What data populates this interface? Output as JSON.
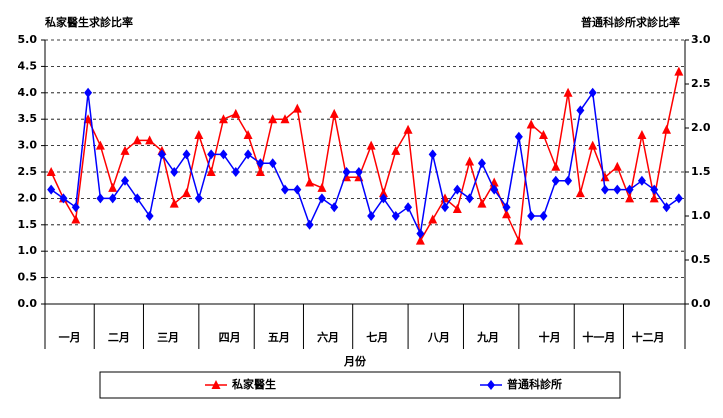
{
  "chart_data": {
    "type": "line",
    "title": "私家醫生求診比率",
    "y2_title": "普通科診所求診比率",
    "x_label": "月份",
    "categories": [
      null,
      "一月",
      null,
      null,
      null,
      "二月",
      null,
      null,
      null,
      "三月",
      null,
      null,
      null,
      null,
      "四月",
      null,
      null,
      null,
      "五月",
      null,
      null,
      null,
      "六月",
      null,
      null,
      null,
      "七月",
      null,
      null,
      null,
      null,
      "八月",
      null,
      null,
      null,
      "九月",
      null,
      null,
      null,
      null,
      "十月",
      null,
      null,
      null,
      "十一月",
      null,
      null,
      null,
      "十二月",
      null,
      null,
      null
    ],
    "series": [
      {
        "name": "私家醫生",
        "color": "#ff0000",
        "marker": "triangle",
        "values": [
          2.5,
          2.0,
          1.6,
          3.5,
          3.0,
          2.2,
          2.9,
          3.1,
          3.1,
          2.9,
          1.9,
          2.1,
          3.2,
          2.5,
          3.5,
          3.6,
          3.2,
          2.5,
          3.5,
          3.5,
          3.7,
          2.3,
          2.2,
          3.6,
          2.4,
          2.4,
          3.0,
          2.1,
          2.9,
          3.3,
          1.2,
          1.6,
          2.0,
          1.8,
          2.7,
          1.9,
          2.3,
          1.7,
          1.2,
          3.4,
          3.2,
          2.6,
          4.0,
          2.1,
          3.0,
          2.4,
          2.6,
          2.0,
          3.2,
          2.0,
          3.3,
          4.4
        ]
      },
      {
        "name": "普通科診所",
        "color": "#0000ff",
        "marker": "diamond",
        "axis": "y2",
        "values": [
          1.3,
          1.2,
          1.1,
          2.4,
          1.2,
          1.2,
          1.4,
          1.2,
          1.0,
          1.7,
          1.5,
          1.7,
          1.2,
          1.7,
          1.7,
          1.5,
          1.7,
          1.6,
          1.6,
          1.3,
          1.3,
          0.9,
          1.2,
          1.1,
          1.5,
          1.5,
          1.0,
          1.2,
          1.0,
          1.1,
          0.8,
          1.7,
          1.1,
          1.3,
          1.2,
          1.6,
          1.3,
          1.1,
          1.9,
          1.0,
          1.0,
          1.4,
          1.4,
          2.2,
          2.4,
          1.3,
          1.3,
          1.3,
          1.4,
          1.3,
          1.1,
          1.2
        ]
      }
    ],
    "ylim": [
      0,
      5
    ],
    "yticks": [
      {
        "value": 0,
        "label": "0.0"
      },
      {
        "value": 0.5,
        "label": "0.5"
      },
      {
        "value": 1,
        "label": "1.0"
      },
      {
        "value": 1.5,
        "label": "1.5"
      },
      {
        "value": 2,
        "label": "2.0"
      },
      {
        "value": 2.5,
        "label": "2.5"
      },
      {
        "value": 3,
        "label": "3.0"
      },
      {
        "value": 3.5,
        "label": "3.5"
      },
      {
        "value": 4,
        "label": "4.0"
      },
      {
        "value": 4.5,
        "label": "4.5"
      },
      {
        "value": 5,
        "label": "5.0"
      }
    ],
    "y2lim": [
      0,
      3
    ],
    "y2ticks": [
      {
        "value": 0,
        "label": "0.0"
      },
      {
        "value": 0.5,
        "label": "0.5"
      },
      {
        "value": 1,
        "label": "1.0"
      },
      {
        "value": 1.5,
        "label": "1.5"
      },
      {
        "value": 2,
        "label": "2.0"
      },
      {
        "value": 2.5,
        "label": "2.5"
      },
      {
        "value": 3,
        "label": "3.0"
      }
    ],
    "grid": true,
    "legend": "bottom"
  }
}
